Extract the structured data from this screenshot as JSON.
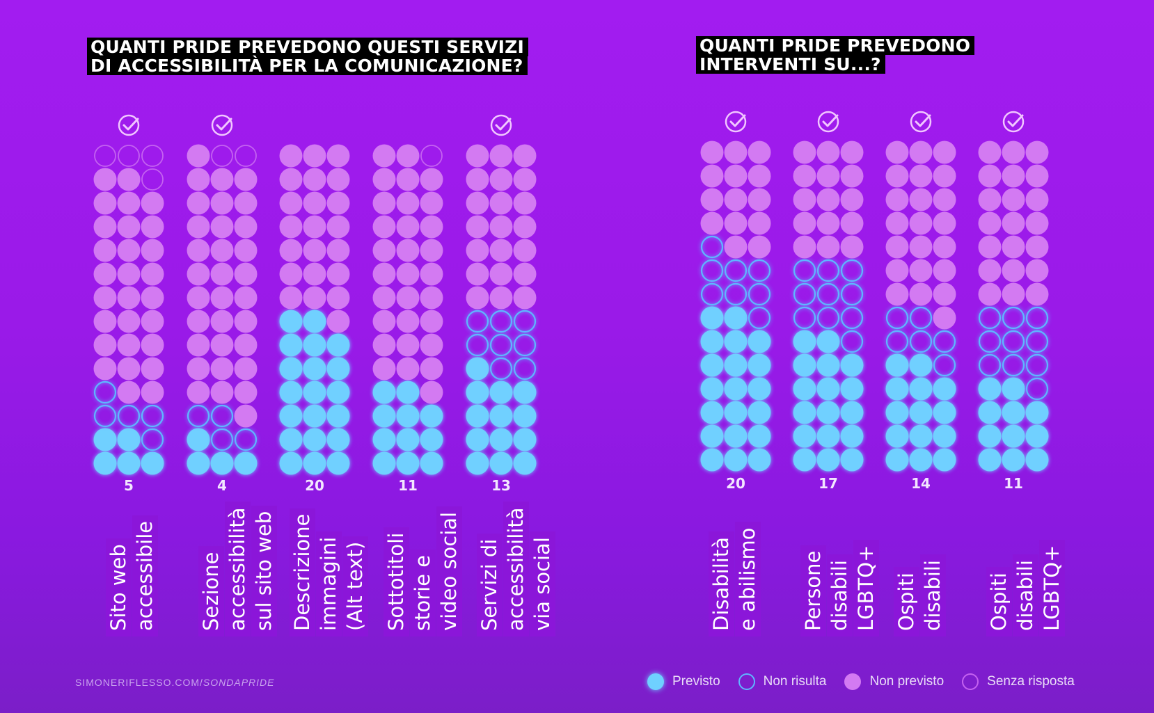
{
  "left_title": {
    "line1": "QUANTI PRIDE PREVEDONO QUESTI SERVIZI",
    "line2": "DI ACCESSIBILITÀ PER LA COMUNICAZIONE?"
  },
  "right_title": {
    "line1": "QUANTI PRIDE PREVEDONO",
    "line2": "INTERVENTI SU...?"
  },
  "footer": {
    "site": "SIMONERIFLESSO.COM/",
    "path": "SONDAPRIDE"
  },
  "colors": {
    "previsto": "#6fd0ff",
    "non_risulta": "#5fb6ff",
    "non_previsto": "#d37af2",
    "senza_risposta": "#c462f0"
  },
  "legend": [
    {
      "key": "previsto",
      "label": "Previsto"
    },
    {
      "key": "non_risulta",
      "label": "Non risulta"
    },
    {
      "key": "non_previsto",
      "label": "Non previsto"
    },
    {
      "key": "senza_risposta",
      "label": "Senza risposta"
    }
  ],
  "chart_data": [
    {
      "type": "waffle",
      "title": "QUANTI PRIDE PREVEDONO QUESTI SERVIZI DI ACCESSIBILITÀ PER LA COMUNICAZIONE?",
      "rows": 14,
      "cols": 3,
      "columns": [
        {
          "lines": [
            "Sito web",
            "accessibile"
          ],
          "label": "5",
          "check": true,
          "previsto": 5,
          "non_risulta": 5,
          "non_previsto": 28,
          "senza_risposta": 4
        },
        {
          "lines": [
            "Sezione",
            "accessibilità",
            "sul sito web"
          ],
          "label": "4",
          "check": true,
          "previsto": 4,
          "non_risulta": 4,
          "non_previsto": 32,
          "senza_risposta": 2
        },
        {
          "lines": [
            "Descrizione",
            "immagini",
            "(Alt text)"
          ],
          "label": "20",
          "check": false,
          "previsto": 20,
          "non_risulta": 0,
          "non_previsto": 22,
          "senza_risposta": 0
        },
        {
          "lines": [
            "Sottotitoli",
            "storie e",
            "video social"
          ],
          "label": "11",
          "check": false,
          "previsto": 11,
          "non_risulta": 0,
          "non_previsto": 30,
          "senza_risposta": 1
        },
        {
          "lines": [
            "Servizi di",
            "accessibilità",
            "via social"
          ],
          "label": "13",
          "check": true,
          "previsto": 13,
          "non_risulta": 8,
          "non_previsto": 21,
          "senza_risposta": 0
        }
      ]
    },
    {
      "type": "waffle",
      "title": "QUANTI PRIDE PREVEDONO INTERVENTI SU...?",
      "rows": 14,
      "cols": 3,
      "columns": [
        {
          "lines": [
            "Disabilità",
            "e abilismo"
          ],
          "label": "20",
          "check": true,
          "previsto": 20,
          "non_risulta": 8,
          "non_previsto": 14,
          "senza_risposta": 0
        },
        {
          "lines": [
            "Persone",
            "disabili",
            "LGBTQ+"
          ],
          "label": "17",
          "check": true,
          "previsto": 17,
          "non_risulta": 10,
          "non_previsto": 15,
          "senza_risposta": 0
        },
        {
          "lines": [
            "Ospiti",
            "disabili"
          ],
          "label": "14",
          "check": true,
          "previsto": 14,
          "non_risulta": 6,
          "non_previsto": 22,
          "senza_risposta": 0
        },
        {
          "lines": [
            "Ospiti",
            "disabili",
            "LGBTQ+"
          ],
          "label": "11",
          "check": true,
          "previsto": 11,
          "non_risulta": 10,
          "non_previsto": 21,
          "senza_risposta": 0
        }
      ]
    }
  ]
}
